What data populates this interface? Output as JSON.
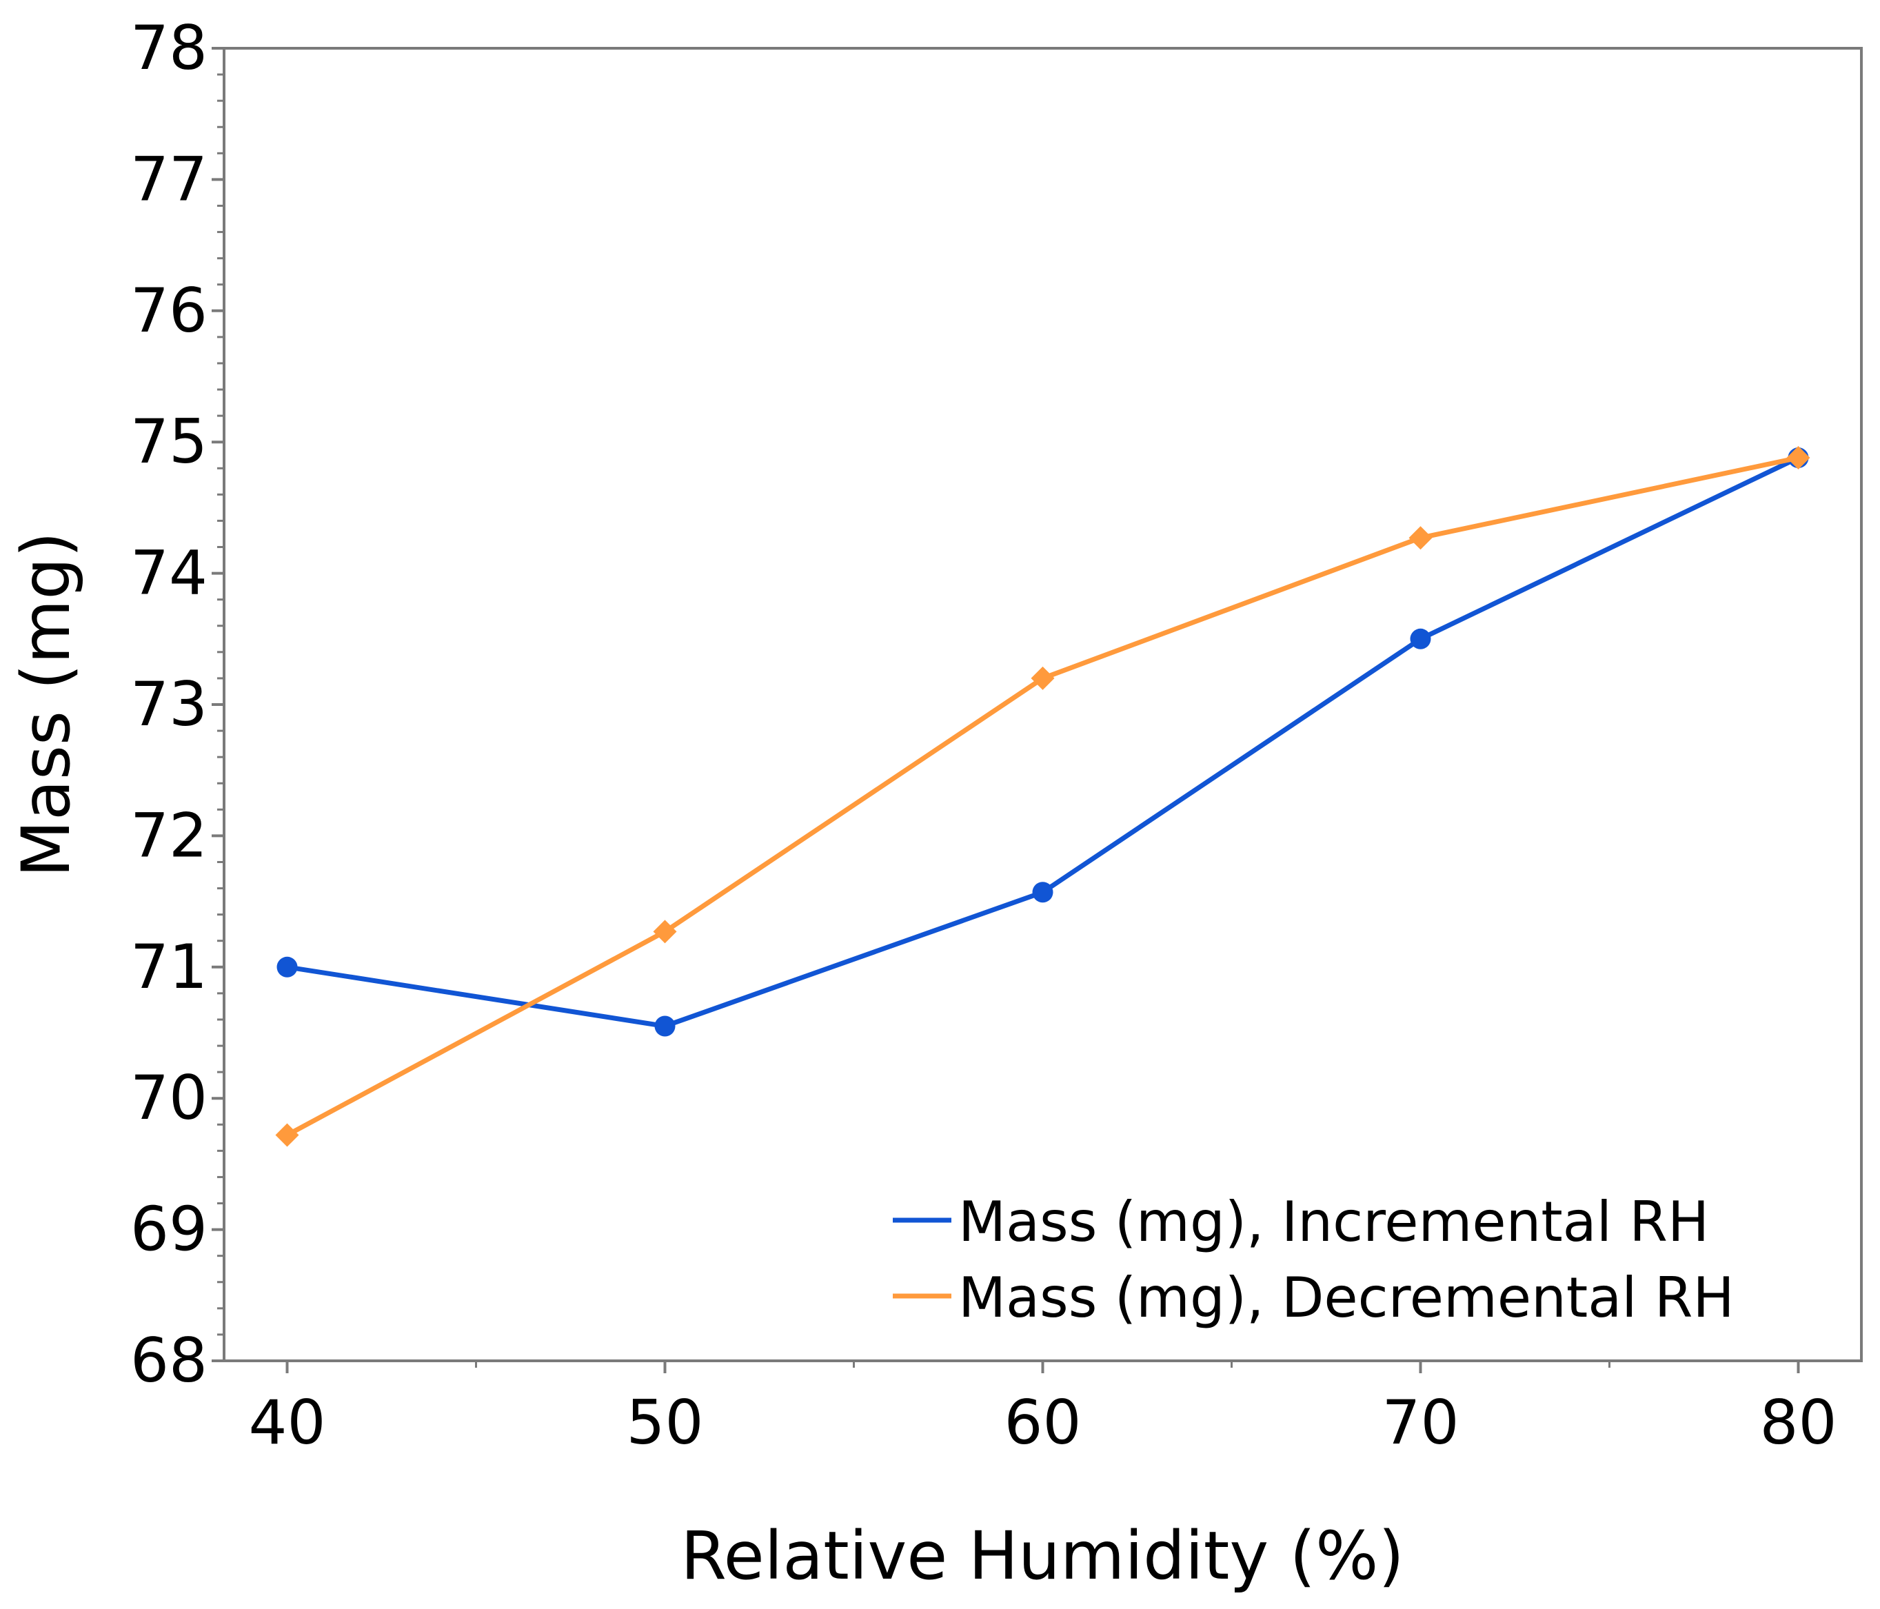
{
  "chart_data": {
    "type": "line",
    "title": "",
    "xlabel": "Relative Humidity (%)",
    "ylabel": "Mass (mg)",
    "x": [
      40,
      50,
      60,
      70,
      80
    ],
    "xlim": [
      38.33,
      81.67
    ],
    "ylim": [
      68,
      78
    ],
    "x_ticks": [
      40,
      50,
      60,
      70,
      80
    ],
    "x_tick_labels": [
      "40",
      "50",
      "60",
      "70",
      "80"
    ],
    "y_ticks": [
      68,
      69,
      70,
      71,
      72,
      73,
      74,
      75,
      76,
      77,
      78
    ],
    "y_tick_labels": [
      "68",
      "69",
      "70",
      "71",
      "72",
      "73",
      "74",
      "75",
      "76",
      "77",
      "78"
    ],
    "grid": false,
    "legend_position": "bottom-right",
    "series": [
      {
        "name": "Mass (mg), Incremental RH",
        "color": "#1155d4",
        "marker": "circle",
        "values": [
          71.0,
          70.55,
          71.57,
          73.5,
          74.88
        ]
      },
      {
        "name": "Mass (mg), Decremental RH",
        "color": "#ff9a3c",
        "marker": "diamond",
        "values": [
          69.72,
          71.27,
          73.2,
          74.27,
          74.88
        ]
      }
    ]
  }
}
